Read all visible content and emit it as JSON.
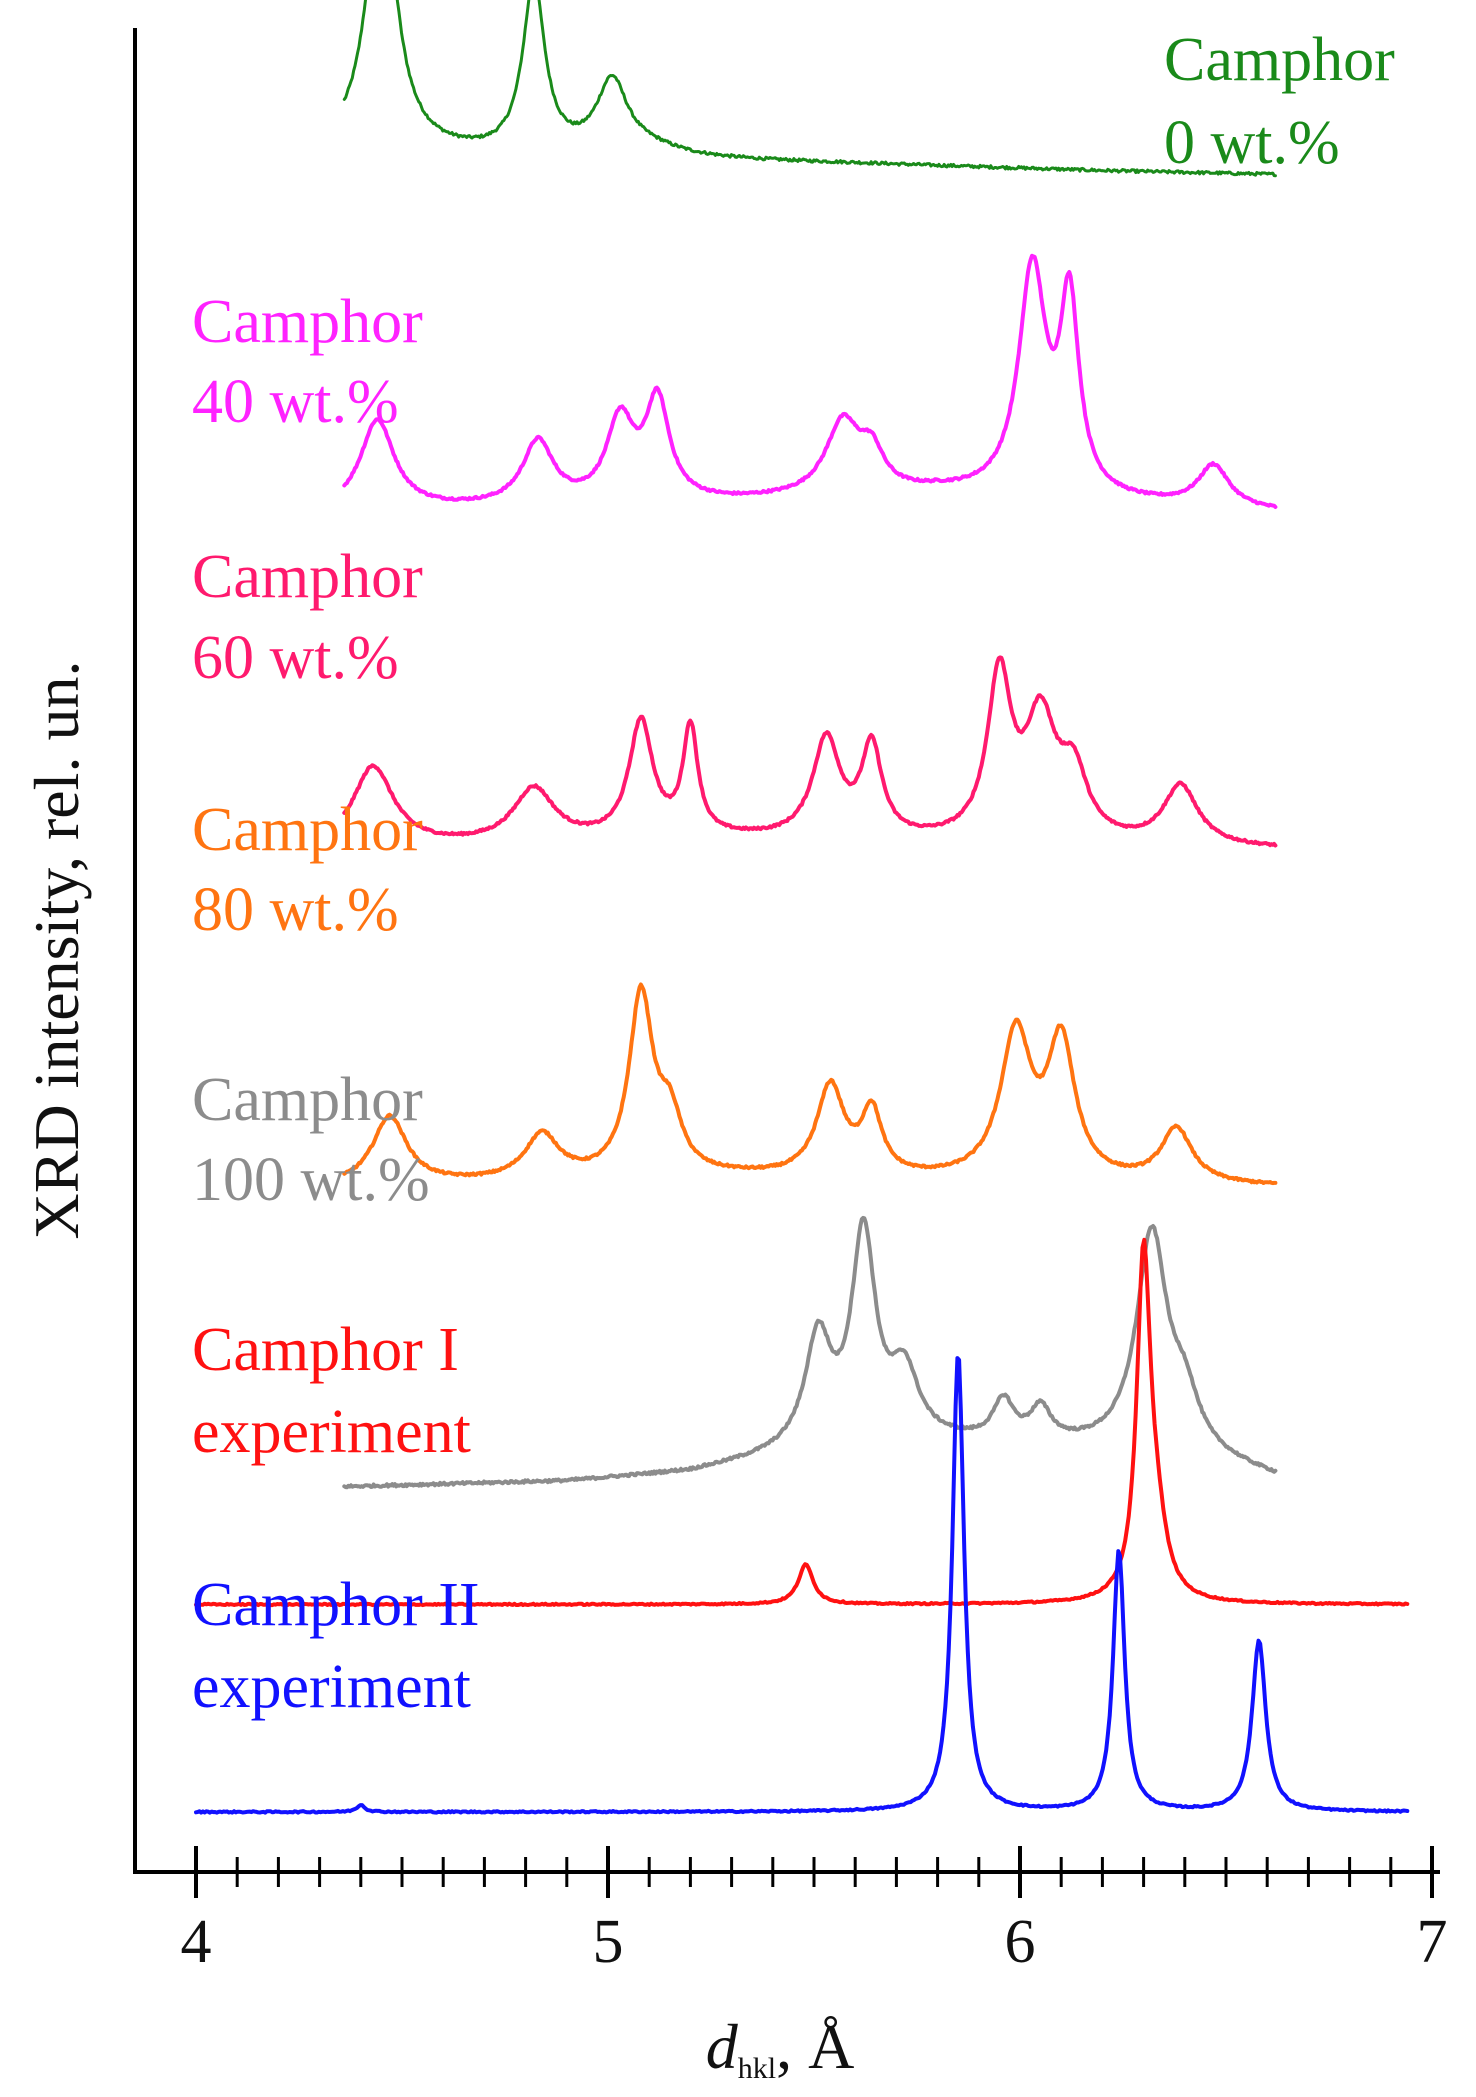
{
  "chart_data": {
    "type": "line",
    "title": "",
    "xlabel_main": "d",
    "xlabel_sub": "hkl",
    "xlabel_unit": ", Å",
    "ylabel": "XRD intensity, rel. un.",
    "xlim": [
      4,
      7
    ],
    "ylim": [
      0,
      8
    ],
    "x_ticks": [
      "4",
      "5",
      "6",
      "7"
    ],
    "y_ticks_visible": false,
    "grid": false,
    "legend": "inline labels left of each trace",
    "series": [
      {
        "key": "c0",
        "label_line1": "Camphor",
        "label_line2": "0 wt.%",
        "color": "#1a8a1a",
        "offset": 6.55,
        "scale": 0.72,
        "xrange": [
          4.36,
          6.62
        ],
        "baseline": [
          [
            4.36,
            0.13
          ],
          [
            4.7,
            0.1
          ],
          [
            5.0,
            0.09
          ],
          [
            5.6,
            0.06
          ],
          [
            6.2,
            0.02
          ],
          [
            6.62,
            0.0
          ]
        ],
        "peaks": [
          [
            4.45,
            1.55,
            0.042
          ],
          [
            4.82,
            0.95,
            0.032
          ],
          [
            5.01,
            0.4,
            0.045
          ],
          [
            5.1,
            0.05,
            0.1
          ]
        ],
        "noise": 0.008
      },
      {
        "key": "c40",
        "label_line1": "Camphor",
        "label_line2": "40 wt.%",
        "color": "#ff22ff",
        "offset": 5.2,
        "scale": 0.72,
        "xrange": [
          4.36,
          6.62
        ],
        "baseline": [
          [
            4.36,
            0.0
          ],
          [
            5.3,
            0.05
          ],
          [
            5.8,
            0.1
          ],
          [
            6.62,
            0.0
          ]
        ],
        "peaks": [
          [
            4.44,
            0.5,
            0.05
          ],
          [
            4.83,
            0.35,
            0.045
          ],
          [
            5.03,
            0.45,
            0.04
          ],
          [
            5.12,
            0.55,
            0.035
          ],
          [
            5.57,
            0.4,
            0.05
          ],
          [
            5.64,
            0.2,
            0.035
          ],
          [
            6.03,
            1.25,
            0.04
          ],
          [
            6.12,
            1.05,
            0.028
          ],
          [
            6.47,
            0.23,
            0.045
          ]
        ],
        "noise": 0.006
      },
      {
        "key": "c60",
        "label_line1": "Camphor",
        "label_line2": "60 wt.%",
        "color": "#ff1a6e",
        "offset": 3.85,
        "scale": 0.72,
        "xrange": [
          4.36,
          6.62
        ],
        "baseline": [
          [
            4.36,
            0.0
          ],
          [
            5.3,
            0.05
          ],
          [
            6.62,
            0.0
          ]
        ],
        "peaks": [
          [
            4.43,
            0.45,
            0.06
          ],
          [
            4.82,
            0.3,
            0.06
          ],
          [
            5.08,
            0.65,
            0.035
          ],
          [
            5.2,
            0.6,
            0.022
          ],
          [
            5.53,
            0.55,
            0.04
          ],
          [
            5.64,
            0.5,
            0.03
          ],
          [
            5.95,
            0.9,
            0.035
          ],
          [
            6.05,
            0.65,
            0.045
          ],
          [
            6.13,
            0.35,
            0.04
          ],
          [
            6.39,
            0.33,
            0.05
          ]
        ],
        "noise": 0.006
      },
      {
        "key": "c80",
        "label_line1": "Camphor",
        "label_line2": "80 wt.%",
        "color": "#ff7411",
        "offset": 2.5,
        "scale": 0.72,
        "xrange": [
          4.36,
          6.62
        ],
        "baseline": [
          [
            4.36,
            0.0
          ],
          [
            5.3,
            0.05
          ],
          [
            6.62,
            0.0
          ]
        ],
        "peaks": [
          [
            4.47,
            0.38,
            0.05
          ],
          [
            4.84,
            0.25,
            0.05
          ],
          [
            5.08,
            1.0,
            0.035
          ],
          [
            5.15,
            0.3,
            0.035
          ],
          [
            5.54,
            0.5,
            0.04
          ],
          [
            5.64,
            0.35,
            0.03
          ],
          [
            5.99,
            0.8,
            0.045
          ],
          [
            6.1,
            0.75,
            0.04
          ],
          [
            6.38,
            0.3,
            0.045
          ]
        ],
        "noise": 0.006
      },
      {
        "key": "c100",
        "label_line1": "Camphor",
        "label_line2": "100 wt.%",
        "color": "#8c8c8c",
        "offset": 1.3,
        "scale": 0.72,
        "xrange": [
          4.36,
          6.62
        ],
        "baseline": [
          [
            4.36,
            0.0
          ],
          [
            4.9,
            0.03
          ],
          [
            5.2,
            0.08
          ],
          [
            5.45,
            0.18
          ],
          [
            5.7,
            0.25
          ],
          [
            6.1,
            0.22
          ],
          [
            6.4,
            0.18
          ],
          [
            6.62,
            0.05
          ]
        ],
        "peaks": [
          [
            5.51,
            0.6,
            0.038
          ],
          [
            5.62,
            1.15,
            0.035
          ],
          [
            5.72,
            0.35,
            0.04
          ],
          [
            5.96,
            0.22,
            0.03
          ],
          [
            6.05,
            0.18,
            0.03
          ],
          [
            6.32,
            1.2,
            0.045
          ],
          [
            6.4,
            0.25,
            0.04
          ]
        ],
        "noise": 0.007
      },
      {
        "key": "cI",
        "label_line1": "Camphor I",
        "label_line2": "experiment",
        "color": "#ff1111",
        "offset": 0.83,
        "scale": 0.72,
        "xrange": [
          4.0,
          6.94
        ],
        "baseline": [
          [
            4.0,
            0.0
          ],
          [
            6.94,
            0.0
          ]
        ],
        "peaks": [
          [
            5.48,
            0.22,
            0.022
          ],
          [
            6.3,
            1.85,
            0.02
          ],
          [
            6.33,
            0.35,
            0.03
          ]
        ],
        "noise": 0.004
      },
      {
        "key": "cII",
        "label_line1": "Camphor II",
        "label_line2": "experiment",
        "color": "#1111ff",
        "offset": 0.0,
        "scale": 0.72,
        "xrange": [
          4.0,
          6.94
        ],
        "baseline": [
          [
            4.0,
            0.0
          ],
          [
            6.94,
            0.0
          ]
        ],
        "peaks": [
          [
            4.4,
            0.04,
            0.012
          ],
          [
            5.85,
            2.55,
            0.017
          ],
          [
            6.24,
            1.45,
            0.017
          ],
          [
            6.58,
            0.95,
            0.02
          ]
        ],
        "noise": 0.004
      }
    ]
  }
}
